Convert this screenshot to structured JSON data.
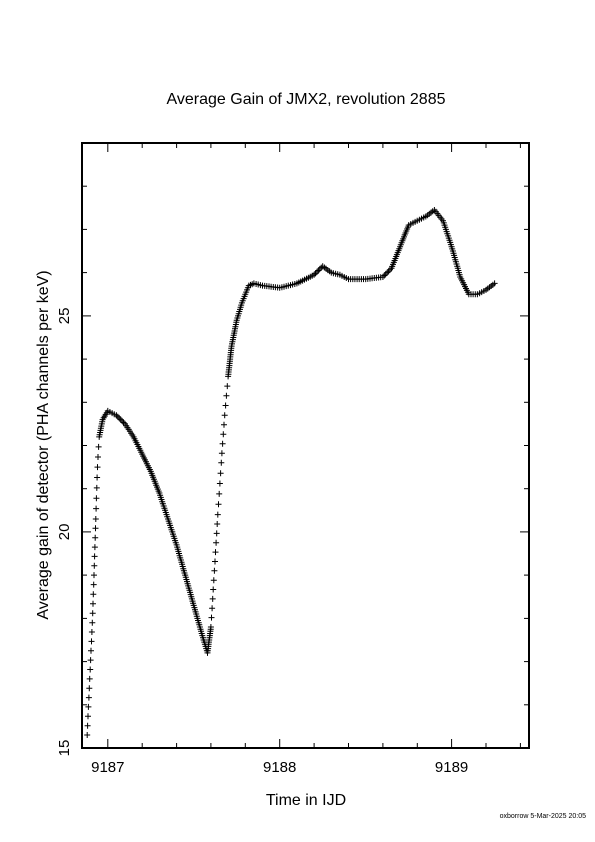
{
  "chart_data": {
    "type": "scatter",
    "title": "Average Gain of JMX2, revolution 2885",
    "xlabel": "Time in IJD",
    "ylabel": "Average gain of detector (PHA channels per keV)",
    "xlim": [
      9186.85,
      9189.45
    ],
    "ylim": [
      15,
      29
    ],
    "x_ticks": [
      9187,
      9188,
      9189
    ],
    "x_tick_labels": [
      "9187",
      "9188",
      "9189"
    ],
    "y_ticks": [
      15,
      20,
      25
    ],
    "y_tick_labels": [
      "15",
      "20",
      "25"
    ],
    "marker": "+",
    "grid": false,
    "legend": "none",
    "footer": "oxborrow  5-Mar-2025 20:05",
    "series": [
      {
        "points": [
          [
            9186.88,
            15.3
          ],
          [
            9186.895,
            16.6
          ],
          [
            9186.91,
            17.9
          ],
          [
            9186.92,
            19.0
          ],
          [
            9186.93,
            20.3
          ],
          [
            9186.94,
            21.5
          ],
          [
            9186.95,
            22.2
          ],
          [
            9186.97,
            22.6
          ],
          [
            9187.0,
            22.8
          ],
          [
            9187.05,
            22.7
          ],
          [
            9187.1,
            22.5
          ],
          [
            9187.15,
            22.2
          ],
          [
            9187.2,
            21.8
          ],
          [
            9187.25,
            21.4
          ],
          [
            9187.3,
            20.9
          ],
          [
            9187.35,
            20.3
          ],
          [
            9187.4,
            19.7
          ],
          [
            9187.45,
            19.0
          ],
          [
            9187.5,
            18.3
          ],
          [
            9187.55,
            17.6
          ],
          [
            9187.58,
            17.2
          ],
          [
            9187.6,
            17.8
          ],
          [
            9187.62,
            19.1
          ],
          [
            9187.64,
            20.4
          ],
          [
            9187.66,
            21.6
          ],
          [
            9187.68,
            22.7
          ],
          [
            9187.7,
            23.6
          ],
          [
            9187.72,
            24.3
          ],
          [
            9187.75,
            24.9
          ],
          [
            9187.78,
            25.3
          ],
          [
            9187.82,
            25.7
          ],
          [
            9187.85,
            25.75
          ],
          [
            9187.9,
            25.7
          ],
          [
            9188.0,
            25.65
          ],
          [
            9188.1,
            25.75
          ],
          [
            9188.2,
            25.95
          ],
          [
            9188.25,
            26.15
          ],
          [
            9188.3,
            26.0
          ],
          [
            9188.35,
            25.95
          ],
          [
            9188.4,
            25.85
          ],
          [
            9188.5,
            25.85
          ],
          [
            9188.6,
            25.9
          ],
          [
            9188.65,
            26.1
          ],
          [
            9188.7,
            26.6
          ],
          [
            9188.75,
            27.1
          ],
          [
            9188.8,
            27.2
          ],
          [
            9188.85,
            27.3
          ],
          [
            9188.9,
            27.45
          ],
          [
            9188.95,
            27.2
          ],
          [
            9189.0,
            26.6
          ],
          [
            9189.05,
            25.9
          ],
          [
            9189.1,
            25.5
          ],
          [
            9189.15,
            25.5
          ],
          [
            9189.2,
            25.6
          ],
          [
            9189.25,
            25.75
          ]
        ]
      }
    ]
  }
}
